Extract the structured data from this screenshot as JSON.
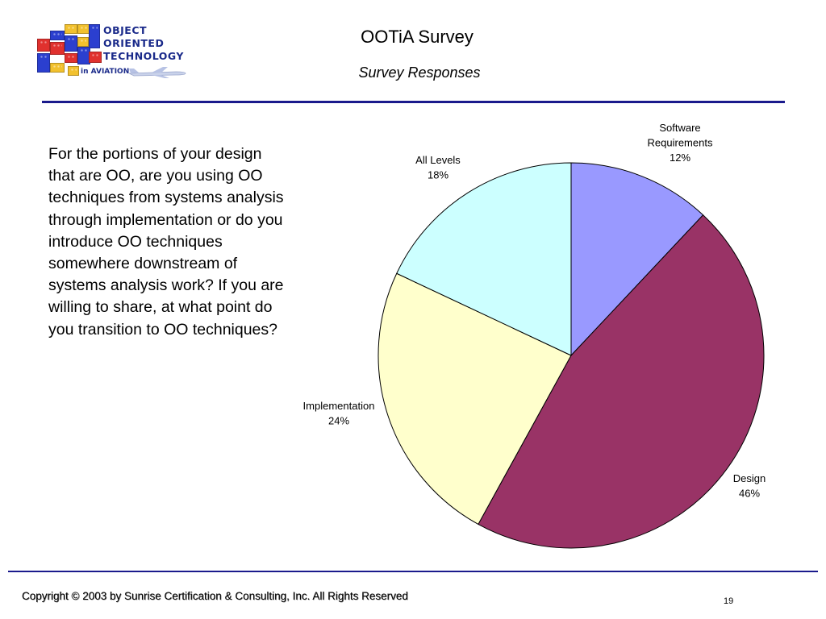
{
  "logo": {
    "line1": "OBJECT",
    "line2": "ORIENTED",
    "line3": "TECHNOLOGY",
    "sub": "in AVIATION",
    "colors": {
      "red": "#e0312e",
      "blue": "#2b3fcf",
      "yellow": "#f2c12e",
      "navy": "#1a2a8a"
    },
    "icon": "airplane-icon"
  },
  "header": {
    "title": "OOTiA Survey",
    "subtitle": "Survey Responses"
  },
  "question": "For the portions of your design that are OO, are you using OO techniques from systems analysis through implementation or do you introduce OO techniques somewhere downstream of systems analysis work?  If you are willing to share, at what point do you transition to OO techniques?",
  "chart_data": {
    "type": "pie",
    "title": "",
    "start": "12 o'clock, clockwise",
    "categories": [
      "Software Requirements",
      "Design",
      "Implementation",
      "All Levels"
    ],
    "values": [
      12,
      46,
      24,
      18
    ],
    "label_lines": [
      [
        "Software",
        "Requirements",
        "12%"
      ],
      [
        "Design",
        "46%"
      ],
      [
        "Implementation",
        "24%"
      ],
      [
        "All Levels",
        "18%"
      ]
    ],
    "colors": [
      "#9999ff",
      "#993366",
      "#ffffcc",
      "#ccffff"
    ],
    "legend": "none"
  },
  "footer": {
    "copyright": "Copyright © 2003 by Sunrise Certification & Consulting, Inc.  All Rights Reserved",
    "page": "19"
  }
}
